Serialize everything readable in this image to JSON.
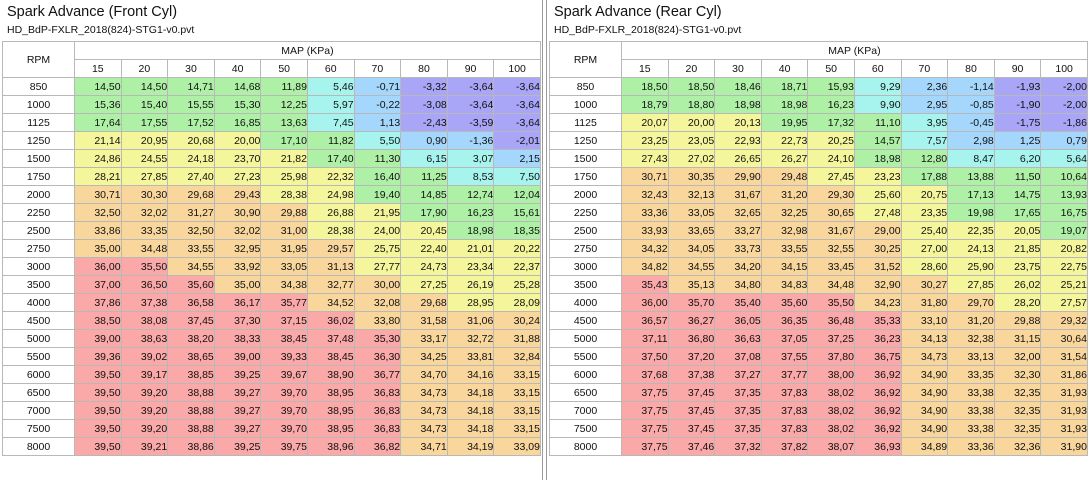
{
  "palette": {
    "purple": "#a9a5f7",
    "blue": "#a5d6fb",
    "cyan": "#a7f4ef",
    "green": "#aef0a6",
    "yellow": "#f5f59b",
    "orange": "#f9d79c",
    "red": "#fba8a8"
  },
  "front": {
    "title": "Spark Advance (Front Cyl)",
    "file": "HD_BdP-FXLR_2018(824)-STG1-v0.pvt",
    "rpm_label": "RPM",
    "map_label": "MAP (KPa)",
    "columns": [
      "15",
      "20",
      "30",
      "40",
      "50",
      "60",
      "70",
      "80",
      "90",
      "100"
    ],
    "rows": [
      {
        "rpm": "850",
        "values": [
          "14,50",
          "14,50",
          "14,71",
          "14,68",
          "11,89",
          "5,46",
          "-0,71",
          "-3,32",
          "-3,64",
          "-3,64"
        ]
      },
      {
        "rpm": "1000",
        "values": [
          "15,36",
          "15,40",
          "15,55",
          "15,30",
          "12,25",
          "5,97",
          "-0,22",
          "-3,08",
          "-3,64",
          "-3,64"
        ]
      },
      {
        "rpm": "1125",
        "values": [
          "17,64",
          "17,55",
          "17,52",
          "16,85",
          "13,63",
          "7,45",
          "1,13",
          "-2,43",
          "-3,59",
          "-3,64"
        ]
      },
      {
        "rpm": "1250",
        "values": [
          "21,14",
          "20,95",
          "20,68",
          "20,00",
          "17,10",
          "11,82",
          "5,50",
          "0,90",
          "-1,36",
          "-2,01"
        ]
      },
      {
        "rpm": "1500",
        "values": [
          "24,86",
          "24,55",
          "24,18",
          "23,70",
          "21,82",
          "17,40",
          "11,30",
          "6,15",
          "3,07",
          "2,15"
        ]
      },
      {
        "rpm": "1750",
        "values": [
          "28,21",
          "27,85",
          "27,40",
          "27,23",
          "25,98",
          "22,32",
          "16,40",
          "11,25",
          "8,53",
          "7,50"
        ]
      },
      {
        "rpm": "2000",
        "values": [
          "30,71",
          "30,30",
          "29,68",
          "29,43",
          "28,38",
          "24,98",
          "19,40",
          "14,85",
          "12,74",
          "12,04"
        ]
      },
      {
        "rpm": "2250",
        "values": [
          "32,50",
          "32,02",
          "31,27",
          "30,90",
          "29,88",
          "26,88",
          "21,95",
          "17,90",
          "16,23",
          "15,61"
        ]
      },
      {
        "rpm": "2500",
        "values": [
          "33,86",
          "33,35",
          "32,50",
          "32,02",
          "31,00",
          "28,38",
          "24,00",
          "20,45",
          "18,98",
          "18,35"
        ]
      },
      {
        "rpm": "2750",
        "values": [
          "35,00",
          "34,48",
          "33,55",
          "32,95",
          "31,95",
          "29,57",
          "25,75",
          "22,40",
          "21,01",
          "20,22"
        ]
      },
      {
        "rpm": "3000",
        "values": [
          "36,00",
          "35,50",
          "34,55",
          "33,92",
          "33,05",
          "31,13",
          "27,77",
          "24,73",
          "23,34",
          "22,37"
        ]
      },
      {
        "rpm": "3500",
        "values": [
          "37,00",
          "36,50",
          "35,60",
          "35,00",
          "34,38",
          "32,77",
          "30,00",
          "27,25",
          "26,19",
          "25,28"
        ]
      },
      {
        "rpm": "4000",
        "values": [
          "37,86",
          "37,38",
          "36,58",
          "36,17",
          "35,77",
          "34,52",
          "32,08",
          "29,68",
          "28,95",
          "28,09"
        ]
      },
      {
        "rpm": "4500",
        "values": [
          "38,50",
          "38,08",
          "37,45",
          "37,30",
          "37,15",
          "36,02",
          "33,80",
          "31,58",
          "31,06",
          "30,24"
        ]
      },
      {
        "rpm": "5000",
        "values": [
          "39,00",
          "38,63",
          "38,20",
          "38,33",
          "38,45",
          "37,48",
          "35,30",
          "33,17",
          "32,72",
          "31,88"
        ]
      },
      {
        "rpm": "5500",
        "values": [
          "39,36",
          "39,02",
          "38,65",
          "39,00",
          "39,33",
          "38,45",
          "36,30",
          "34,25",
          "33,81",
          "32,84"
        ]
      },
      {
        "rpm": "6000",
        "values": [
          "39,50",
          "39,17",
          "38,85",
          "39,25",
          "39,67",
          "38,90",
          "36,77",
          "34,70",
          "34,16",
          "33,15"
        ]
      },
      {
        "rpm": "6500",
        "values": [
          "39,50",
          "39,20",
          "38,88",
          "39,27",
          "39,70",
          "38,95",
          "36,83",
          "34,73",
          "34,18",
          "33,15"
        ]
      },
      {
        "rpm": "7000",
        "values": [
          "39,50",
          "39,20",
          "38,88",
          "39,27",
          "39,70",
          "38,95",
          "36,83",
          "34,73",
          "34,18",
          "33,15"
        ]
      },
      {
        "rpm": "7500",
        "values": [
          "39,50",
          "39,20",
          "38,88",
          "39,27",
          "39,70",
          "38,95",
          "36,83",
          "34,73",
          "34,18",
          "33,15"
        ]
      },
      {
        "rpm": "8000",
        "values": [
          "39,50",
          "39,21",
          "38,86",
          "39,25",
          "39,75",
          "38,96",
          "36,82",
          "34,71",
          "34,19",
          "33,09"
        ]
      }
    ]
  },
  "rear": {
    "title": "Spark Advance (Rear Cyl)",
    "file": "HD_BdP-FXLR_2018(824)-STG1-v0.pvt",
    "rpm_label": "RPM",
    "map_label": "MAP (KPa)",
    "columns": [
      "15",
      "20",
      "30",
      "40",
      "50",
      "60",
      "70",
      "80",
      "90",
      "100"
    ],
    "rows": [
      {
        "rpm": "850",
        "values": [
          "18,50",
          "18,50",
          "18,46",
          "18,71",
          "15,93",
          "9,29",
          "2,36",
          "-1,14",
          "-1,93",
          "-2,00"
        ]
      },
      {
        "rpm": "1000",
        "values": [
          "18,79",
          "18,80",
          "18,98",
          "18,98",
          "16,23",
          "9,90",
          "2,95",
          "-0,85",
          "-1,90",
          "-2,00"
        ]
      },
      {
        "rpm": "1125",
        "values": [
          "20,07",
          "20,00",
          "20,13",
          "19,95",
          "17,32",
          "11,10",
          "3,95",
          "-0,45",
          "-1,75",
          "-1,86"
        ]
      },
      {
        "rpm": "1250",
        "values": [
          "23,25",
          "23,05",
          "22,93",
          "22,73",
          "20,25",
          "14,57",
          "7,57",
          "2,98",
          "1,25",
          "0,79"
        ]
      },
      {
        "rpm": "1500",
        "values": [
          "27,43",
          "27,02",
          "26,65",
          "26,27",
          "24,10",
          "18,98",
          "12,80",
          "8,47",
          "6,20",
          "5,64"
        ]
      },
      {
        "rpm": "1750",
        "values": [
          "30,71",
          "30,35",
          "29,90",
          "29,48",
          "27,45",
          "23,23",
          "17,88",
          "13,88",
          "11,50",
          "10,64"
        ]
      },
      {
        "rpm": "2000",
        "values": [
          "32,43",
          "32,13",
          "31,67",
          "31,20",
          "29,30",
          "25,60",
          "20,75",
          "17,13",
          "14,75",
          "13,93"
        ]
      },
      {
        "rpm": "2250",
        "values": [
          "33,36",
          "33,05",
          "32,65",
          "32,25",
          "30,65",
          "27,48",
          "23,35",
          "19,98",
          "17,65",
          "16,75"
        ]
      },
      {
        "rpm": "2500",
        "values": [
          "33,93",
          "33,65",
          "33,27",
          "32,98",
          "31,67",
          "29,00",
          "25,40",
          "22,35",
          "20,05",
          "19,07"
        ]
      },
      {
        "rpm": "2750",
        "values": [
          "34,32",
          "34,05",
          "33,73",
          "33,55",
          "32,55",
          "30,25",
          "27,00",
          "24,13",
          "21,85",
          "20,82"
        ]
      },
      {
        "rpm": "3000",
        "values": [
          "34,82",
          "34,55",
          "34,20",
          "34,15",
          "33,45",
          "31,52",
          "28,60",
          "25,90",
          "23,75",
          "22,75"
        ]
      },
      {
        "rpm": "3500",
        "values": [
          "35,43",
          "35,13",
          "34,80",
          "34,83",
          "34,48",
          "32,90",
          "30,27",
          "27,85",
          "26,02",
          "25,21"
        ]
      },
      {
        "rpm": "4000",
        "values": [
          "36,00",
          "35,70",
          "35,40",
          "35,60",
          "35,50",
          "34,23",
          "31,80",
          "29,70",
          "28,20",
          "27,57"
        ]
      },
      {
        "rpm": "4500",
        "values": [
          "36,57",
          "36,27",
          "36,05",
          "36,35",
          "36,48",
          "35,33",
          "33,10",
          "31,20",
          "29,88",
          "29,32"
        ]
      },
      {
        "rpm": "5000",
        "values": [
          "37,11",
          "36,80",
          "36,63",
          "37,05",
          "37,25",
          "36,23",
          "34,13",
          "32,38",
          "31,15",
          "30,64"
        ]
      },
      {
        "rpm": "5500",
        "values": [
          "37,50",
          "37,20",
          "37,08",
          "37,55",
          "37,80",
          "36,75",
          "34,73",
          "33,13",
          "32,00",
          "31,54"
        ]
      },
      {
        "rpm": "6000",
        "values": [
          "37,68",
          "37,38",
          "37,27",
          "37,77",
          "38,00",
          "36,92",
          "34,90",
          "33,35",
          "32,30",
          "31,86"
        ]
      },
      {
        "rpm": "6500",
        "values": [
          "37,75",
          "37,45",
          "37,35",
          "37,83",
          "38,02",
          "36,92",
          "34,90",
          "33,38",
          "32,35",
          "31,93"
        ]
      },
      {
        "rpm": "7000",
        "values": [
          "37,75",
          "37,45",
          "37,35",
          "37,83",
          "38,02",
          "36,92",
          "34,90",
          "33,38",
          "32,35",
          "31,93"
        ]
      },
      {
        "rpm": "7500",
        "values": [
          "37,75",
          "37,45",
          "37,35",
          "37,83",
          "38,02",
          "36,92",
          "34,90",
          "33,38",
          "32,35",
          "31,93"
        ]
      },
      {
        "rpm": "8000",
        "values": [
          "37,75",
          "37,46",
          "37,32",
          "37,82",
          "38,07",
          "36,93",
          "34,89",
          "33,36",
          "32,36",
          "31,90"
        ]
      }
    ]
  }
}
